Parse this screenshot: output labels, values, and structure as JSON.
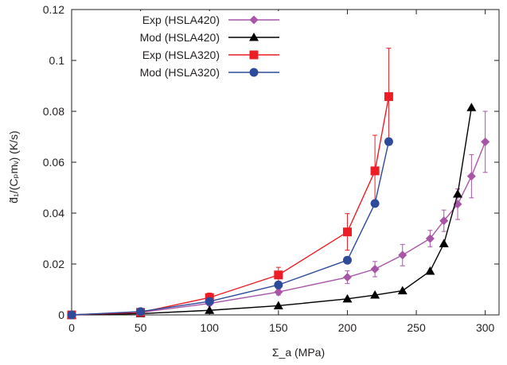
{
  "chart_data": {
    "type": "line",
    "xlabel": "Σ_a (MPa)",
    "ylabel": "d̃₁/(Cₚmᵥ) (K/s)",
    "xlim": [
      0,
      310
    ],
    "ylim": [
      0,
      0.12
    ],
    "x_ticks": [
      "0",
      "50",
      "100",
      "150",
      "200",
      "250",
      "300"
    ],
    "y_ticks": [
      "0",
      "0.02",
      "0.04",
      "0.06",
      "0.08",
      "0.1",
      "0.12"
    ],
    "grid": false,
    "legend_position": "top-left",
    "series": [
      {
        "name": "Exp (HSLA420)",
        "color": "#a855a8",
        "marker": "diamond",
        "x": [
          0,
          50,
          100,
          150,
          200,
          220,
          240,
          260,
          270,
          280,
          290,
          300
        ],
        "y": [
          0,
          0.001,
          0.0045,
          0.009,
          0.0148,
          0.018,
          0.0235,
          0.03,
          0.037,
          0.0435,
          0.0545,
          0.068
        ],
        "err": [
          0,
          0,
          0.0008,
          0.0012,
          0.0025,
          0.003,
          0.0042,
          0.0032,
          0.0042,
          0.006,
          0.0085,
          0.012
        ]
      },
      {
        "name": "Mod (HSLA420)",
        "color": "#000000",
        "marker": "triangle",
        "x": [
          0,
          50,
          100,
          150,
          200,
          220,
          240,
          260,
          270,
          280,
          290
        ],
        "y": [
          0,
          0.0005,
          0.0018,
          0.0036,
          0.0063,
          0.0078,
          0.0095,
          0.0172,
          0.028,
          0.0475,
          0.0815
        ]
      },
      {
        "name": "Exp (HSLA320)",
        "color": "#ee1c24",
        "marker": "square",
        "x": [
          0,
          50,
          100,
          150,
          200,
          220,
          230
        ],
        "y": [
          0,
          0.001,
          0.0068,
          0.0157,
          0.0326,
          0.0566,
          0.0858
        ],
        "err": [
          0,
          0,
          0.0018,
          0.003,
          0.0072,
          0.014,
          0.019
        ]
      },
      {
        "name": "Mod (HSLA320)",
        "color": "#2e4b9b",
        "marker": "circle",
        "x": [
          0,
          50,
          100,
          150,
          200,
          220,
          230
        ],
        "y": [
          0,
          0.0013,
          0.0053,
          0.0118,
          0.0215,
          0.0438,
          0.0681
        ]
      }
    ]
  }
}
